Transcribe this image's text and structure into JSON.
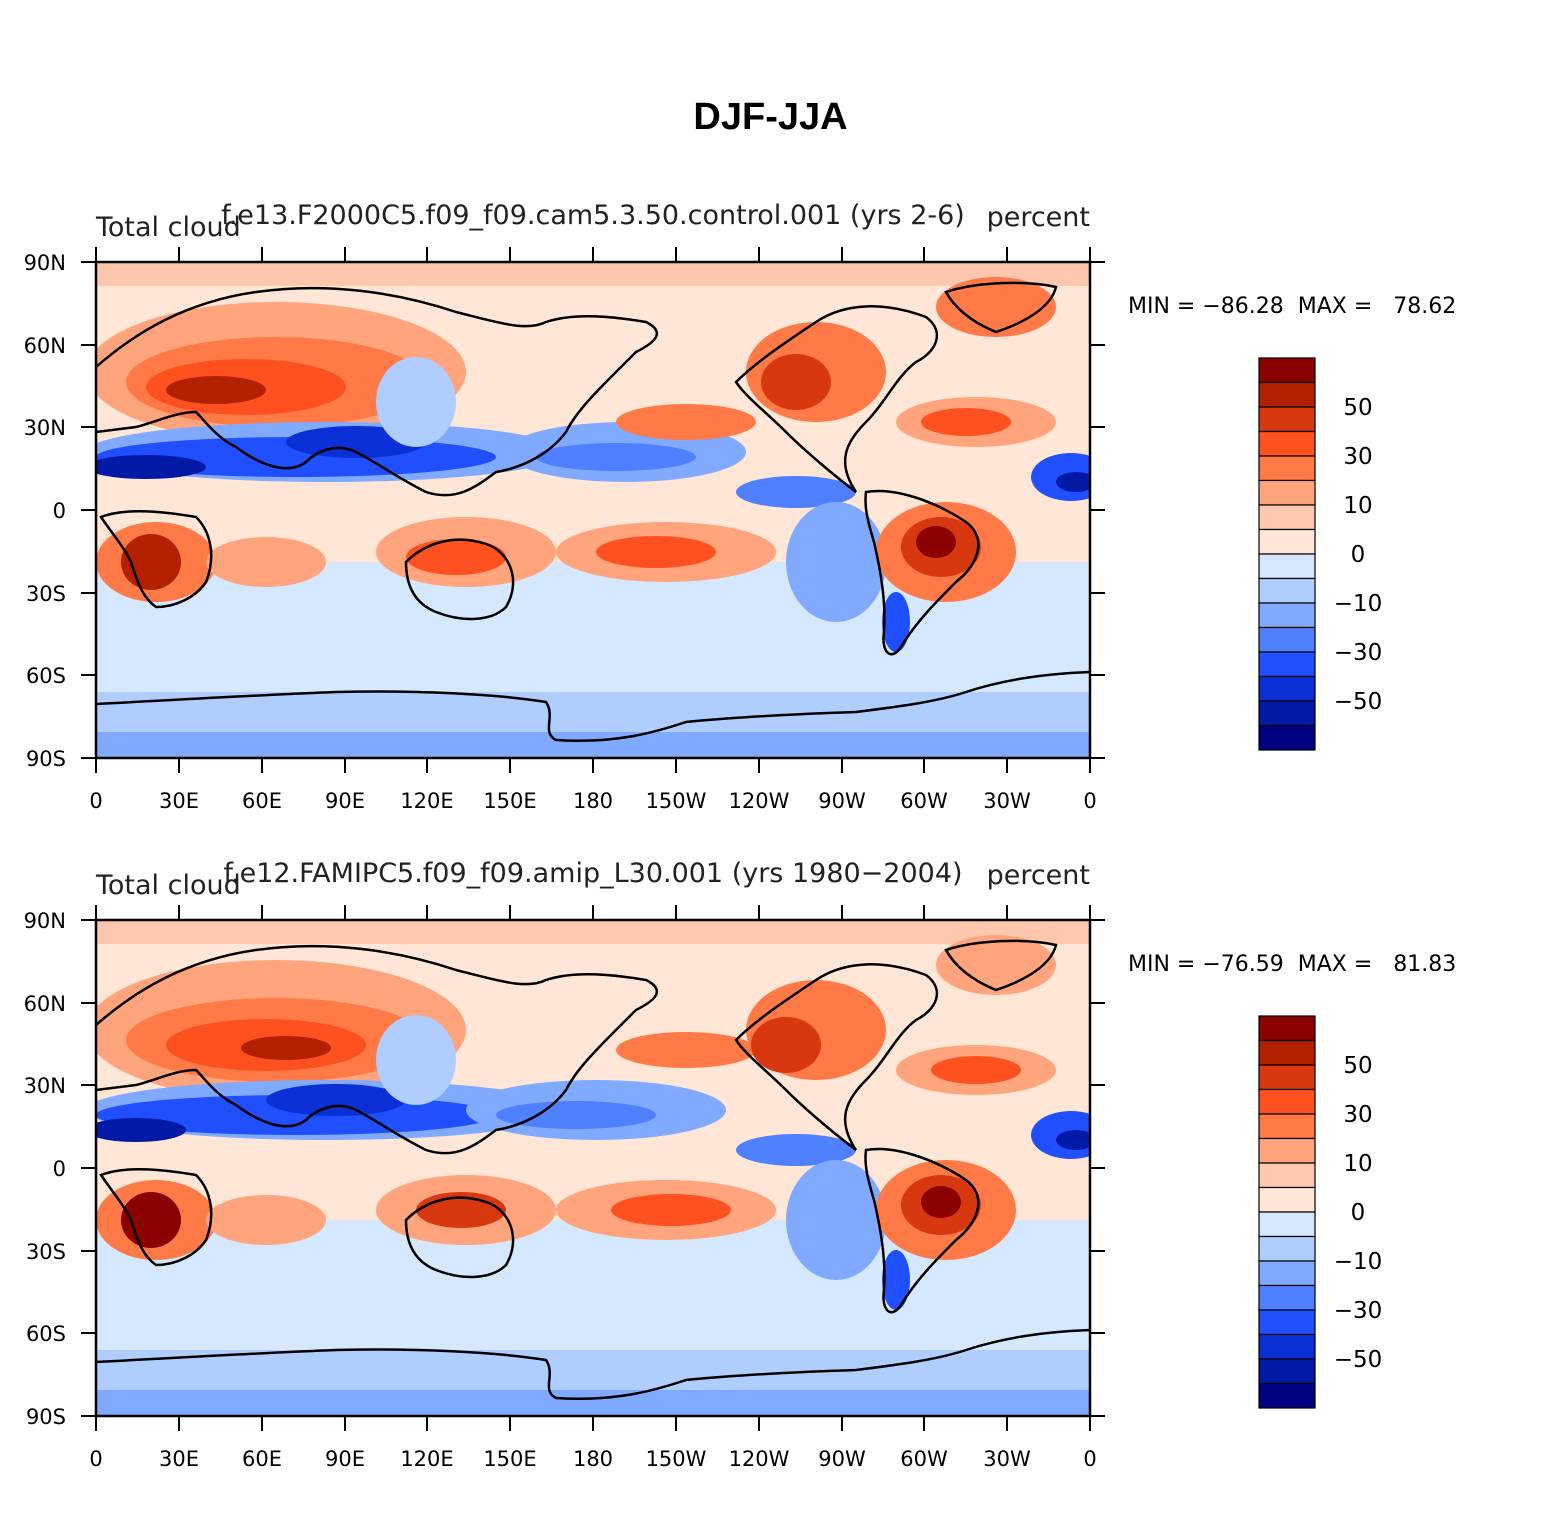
{
  "title": "DJF-JJA",
  "panels": [
    {
      "case_title": "f.e13.F2000C5.f09_f09.cam5.3.50.control.001 (yrs 2-6)",
      "variable": "Total cloud",
      "units": "percent",
      "min_label": "MIN = −86.28",
      "max_label": "MAX =   78.62"
    },
    {
      "case_title": "f.e12.FAMIPC5.f09_f09.amip_L30.001 (yrs 1980−2004)",
      "variable": "Total cloud",
      "units": "percent",
      "min_label": "MIN = −76.59",
      "max_label": "MAX =   81.83"
    }
  ],
  "lon_ticks": [
    "0",
    "30E",
    "60E",
    "90E",
    "120E",
    "150E",
    "180",
    "150W",
    "120W",
    "90W",
    "60W",
    "30W",
    "0"
  ],
  "lat_ticks": [
    "90N",
    "60N",
    "30N",
    "0",
    "30S",
    "60S",
    "90S"
  ],
  "colorbar": {
    "labels": [
      "50",
      "30",
      "10",
      "0",
      "−10",
      "−30",
      "−50"
    ],
    "colors": [
      "#8b0000",
      "#b22000",
      "#d73810",
      "#ff5020",
      "#ff7a46",
      "#ffa47c",
      "#ffc7ad",
      "#ffe6d6",
      "#d6e8ff",
      "#b0cdff",
      "#80aaff",
      "#4f80ff",
      "#1f4fff",
      "#0a2fd4",
      "#001aa6",
      "#000080"
    ]
  }
}
